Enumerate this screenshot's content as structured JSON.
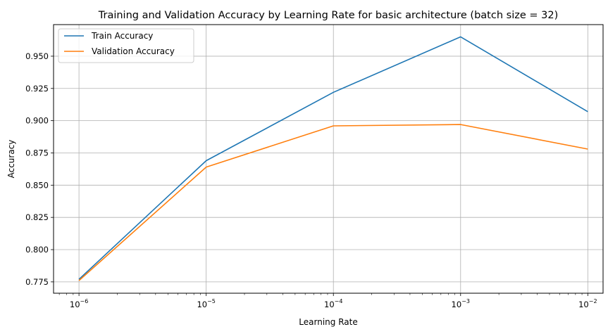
{
  "chart_data": {
    "type": "line",
    "title": "Training and Validation Accuracy by Learning Rate for basic architecture (batch size = 32)",
    "xlabel": "Learning Rate",
    "ylabel": "Accuracy",
    "x_scale": "log",
    "x": [
      1e-06,
      1e-05,
      0.0001,
      0.001,
      0.01
    ],
    "x_tick_labels": [
      {
        "base": "10",
        "exp": "−6"
      },
      {
        "base": "10",
        "exp": "−5"
      },
      {
        "base": "10",
        "exp": "−4"
      },
      {
        "base": "10",
        "exp": "−3"
      },
      {
        "base": "10",
        "exp": "−2"
      }
    ],
    "y_ticks": [
      "0.775",
      "0.800",
      "0.825",
      "0.850",
      "0.875",
      "0.900",
      "0.925",
      "0.950"
    ],
    "grid": true,
    "legend_position": "top-left",
    "series": [
      {
        "name": "Train Accuracy",
        "color": "#1f77b4",
        "values": [
          0.777,
          0.869,
          0.922,
          0.965,
          0.907
        ]
      },
      {
        "name": "Validation Accuracy",
        "color": "#ff7f0e",
        "values": [
          0.776,
          0.864,
          0.896,
          0.897,
          0.878
        ]
      }
    ]
  }
}
